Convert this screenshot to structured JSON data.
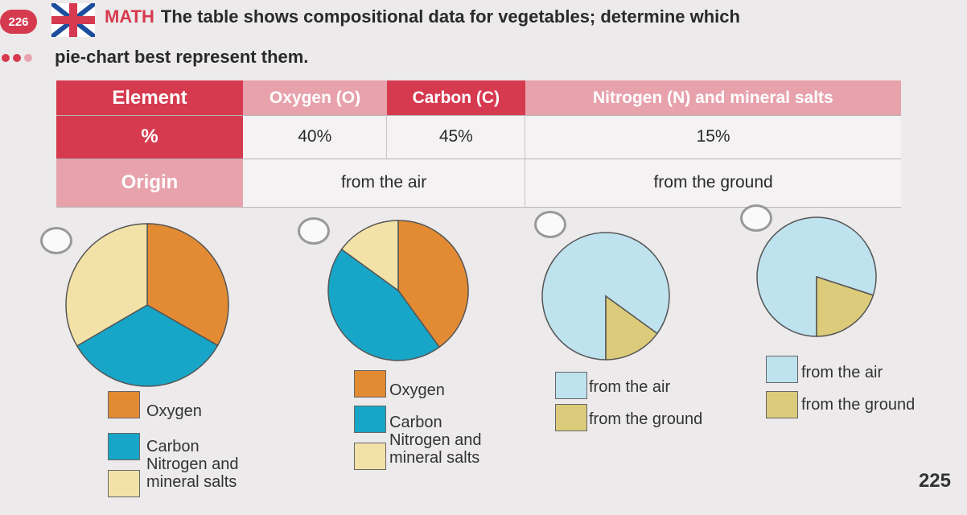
{
  "exercise": {
    "number": "226",
    "subject": "MATH",
    "question_line1": "The table shows compositional data for vegetables; determine which",
    "question_line2": "pie-chart best represent them."
  },
  "table": {
    "row_labels": [
      "Element",
      "%",
      "Origin"
    ],
    "columns": [
      "Oxygen (O)",
      "Carbon (C)",
      "Nitrogen (N) and mineral salts"
    ],
    "percentages": [
      "40%",
      "45%",
      "15%"
    ],
    "origins": [
      "from the air",
      "from the ground"
    ]
  },
  "colors": {
    "oxygen": "#e38b33",
    "carbon": "#18a6c8",
    "nitrogen": "#f3e2a8",
    "air": "#bfe2ef",
    "ground": "#dbcb7a",
    "accent": "#d63a4f"
  },
  "options": [
    {
      "legend": [
        "Oxygen",
        "Carbon",
        "Nitrogen and mineral salts"
      ]
    },
    {
      "legend": [
        "Oxygen",
        "Carbon",
        "Nitrogen and mineral salts"
      ]
    },
    {
      "legend": [
        "from the air",
        "from the ground"
      ]
    },
    {
      "legend": [
        "from the air",
        "from the ground"
      ]
    }
  ],
  "chart_data": [
    {
      "type": "pie",
      "labels": [
        "Oxygen",
        "Carbon",
        "Nitrogen and mineral salts"
      ],
      "values": [
        33.3,
        33.3,
        33.4
      ]
    },
    {
      "type": "pie",
      "labels": [
        "Oxygen",
        "Carbon",
        "Nitrogen and mineral salts"
      ],
      "values": [
        40,
        45,
        15
      ]
    },
    {
      "type": "pie",
      "labels": [
        "from the air",
        "from the ground"
      ],
      "values": [
        85,
        15
      ]
    },
    {
      "type": "pie",
      "labels": [
        "from the air",
        "from the ground"
      ],
      "values": [
        80,
        20
      ]
    }
  ],
  "page_number": "225"
}
